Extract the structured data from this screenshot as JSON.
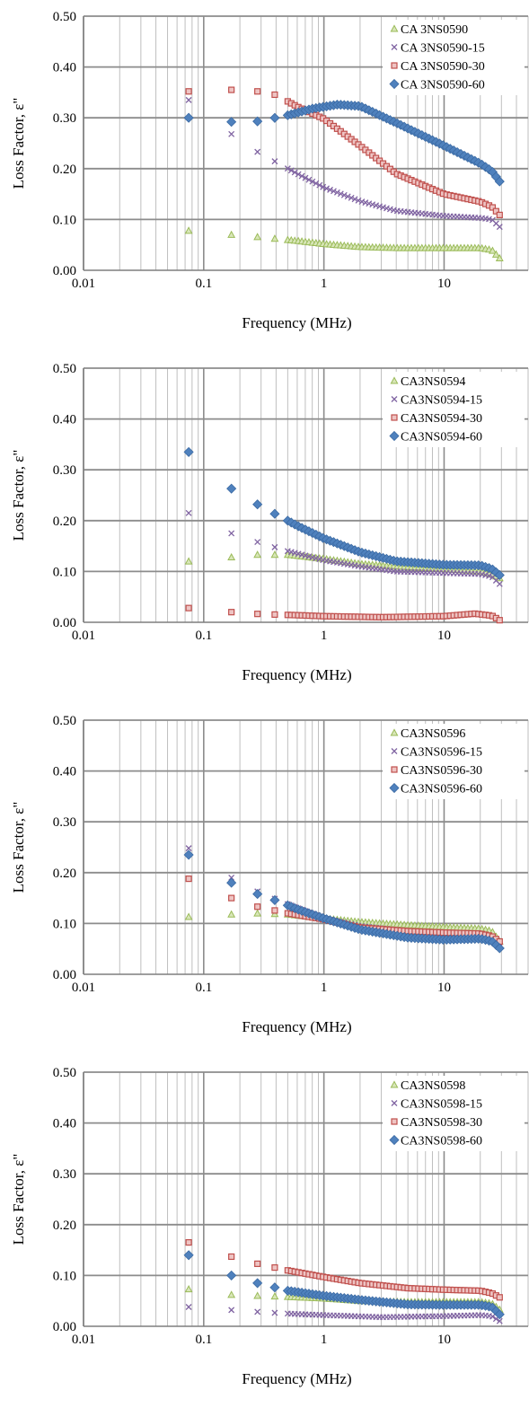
{
  "chart_data": [
    {
      "type": "scatter",
      "xlabel": "Frequency (MHz)",
      "ylabel": "Loss Factor, ε\"",
      "xscale": "log",
      "xlim": [
        0.01,
        50
      ],
      "ylim": [
        0,
        0.5
      ],
      "x_ticks": [
        "0.01",
        "0.1",
        "1",
        "10"
      ],
      "y_ticks": [
        "0.00",
        "0.10",
        "0.20",
        "0.30",
        "0.40",
        "0.50"
      ],
      "grid": true,
      "legend_position": "top-right",
      "series": [
        {
          "name": "CA 3NS0590",
          "marker": "triangle",
          "color": "#9bbb59",
          "knots": [
            [
              0.075,
              0.078
            ],
            [
              0.17,
              0.07
            ],
            [
              0.3,
              0.065
            ],
            [
              0.6,
              0.058
            ],
            [
              1.0,
              0.052
            ],
            [
              2.0,
              0.046
            ],
            [
              4.0,
              0.044
            ],
            [
              10,
              0.044
            ],
            [
              20,
              0.044
            ],
            [
              25,
              0.04
            ],
            [
              30,
              0.02
            ]
          ]
        },
        {
          "name": "CA 3NS0590-15",
          "marker": "x",
          "color": "#8064a2",
          "knots": [
            [
              0.075,
              0.335
            ],
            [
              0.17,
              0.268
            ],
            [
              0.27,
              0.235
            ],
            [
              0.4,
              0.213
            ],
            [
              0.6,
              0.19
            ],
            [
              1.0,
              0.163
            ],
            [
              2.0,
              0.136
            ],
            [
              4.0,
              0.117
            ],
            [
              10,
              0.107
            ],
            [
              20,
              0.103
            ],
            [
              25,
              0.1
            ],
            [
              30,
              0.082
            ]
          ]
        },
        {
          "name": "CA 3NS0590-30",
          "marker": "square",
          "color": "#c0504d",
          "knots": [
            [
              0.075,
              0.352
            ],
            [
              0.17,
              0.355
            ],
            [
              0.28,
              0.352
            ],
            [
              0.4,
              0.345
            ],
            [
              0.6,
              0.322
            ],
            [
              1.0,
              0.298
            ],
            [
              2.0,
              0.245
            ],
            [
              4.0,
              0.19
            ],
            [
              10,
              0.15
            ],
            [
              20,
              0.135
            ],
            [
              25,
              0.125
            ],
            [
              30,
              0.105
            ]
          ]
        },
        {
          "name": "CA 3NS0590-60",
          "marker": "diamond",
          "color": "#4f81bd",
          "knots": [
            [
              0.075,
              0.3
            ],
            [
              0.17,
              0.292
            ],
            [
              0.28,
              0.293
            ],
            [
              0.5,
              0.305
            ],
            [
              0.8,
              0.318
            ],
            [
              1.3,
              0.326
            ],
            [
              2.0,
              0.323
            ],
            [
              4.0,
              0.29
            ],
            [
              10,
              0.245
            ],
            [
              20,
              0.21
            ],
            [
              25,
              0.195
            ],
            [
              30,
              0.17
            ]
          ]
        }
      ]
    },
    {
      "type": "scatter",
      "xlabel": "Frequency (MHz)",
      "ylabel": "Loss Factor, ε\"",
      "xscale": "log",
      "xlim": [
        0.01,
        50
      ],
      "ylim": [
        0,
        0.5
      ],
      "x_ticks": [
        "0.01",
        "0.1",
        "1",
        "10"
      ],
      "y_ticks": [
        "0.00",
        "0.10",
        "0.20",
        "0.30",
        "0.40",
        "0.50"
      ],
      "grid": true,
      "legend_position": "top-right",
      "series": [
        {
          "name": "CA3NS0594",
          "marker": "triangle",
          "color": "#9bbb59",
          "knots": [
            [
              0.075,
              0.12
            ],
            [
              0.17,
              0.128
            ],
            [
              0.28,
              0.133
            ],
            [
              0.5,
              0.133
            ],
            [
              1.0,
              0.125
            ],
            [
              2.0,
              0.115
            ],
            [
              4.0,
              0.11
            ],
            [
              10,
              0.105
            ],
            [
              20,
              0.1
            ],
            [
              25,
              0.095
            ],
            [
              30,
              0.085
            ]
          ]
        },
        {
          "name": "CA3NS0594-15",
          "marker": "x",
          "color": "#8064a2",
          "knots": [
            [
              0.075,
              0.215
            ],
            [
              0.17,
              0.175
            ],
            [
              0.28,
              0.158
            ],
            [
              0.5,
              0.14
            ],
            [
              1.0,
              0.122
            ],
            [
              2.0,
              0.11
            ],
            [
              4.0,
              0.1
            ],
            [
              10,
              0.097
            ],
            [
              20,
              0.095
            ],
            [
              25,
              0.09
            ],
            [
              30,
              0.072
            ]
          ]
        },
        {
          "name": "CA3NS0594-30",
          "marker": "square",
          "color": "#c0504d",
          "knots": [
            [
              0.075,
              0.028
            ],
            [
              0.17,
              0.02
            ],
            [
              0.3,
              0.016
            ],
            [
              0.6,
              0.014
            ],
            [
              1.0,
              0.012
            ],
            [
              3.0,
              0.01
            ],
            [
              10,
              0.012
            ],
            [
              18,
              0.017
            ],
            [
              25,
              0.013
            ],
            [
              30,
              0.002
            ]
          ]
        },
        {
          "name": "CA3NS0594-60",
          "marker": "diamond",
          "color": "#4f81bd",
          "knots": [
            [
              0.075,
              0.335
            ],
            [
              0.17,
              0.263
            ],
            [
              0.28,
              0.232
            ],
            [
              0.4,
              0.212
            ],
            [
              0.6,
              0.19
            ],
            [
              1.0,
              0.165
            ],
            [
              2.0,
              0.138
            ],
            [
              4.0,
              0.12
            ],
            [
              10,
              0.113
            ],
            [
              20,
              0.112
            ],
            [
              25,
              0.105
            ],
            [
              30,
              0.09
            ]
          ]
        }
      ]
    },
    {
      "type": "scatter",
      "xlabel": "Frequency (MHz)",
      "ylabel": "Loss Factor, ε\"",
      "xscale": "log",
      "xlim": [
        0.01,
        50
      ],
      "ylim": [
        0,
        0.5
      ],
      "x_ticks": [
        "0.01",
        "0.1",
        "1",
        "10"
      ],
      "y_ticks": [
        "0.00",
        "0.10",
        "0.20",
        "0.30",
        "0.40",
        "0.50"
      ],
      "grid": true,
      "legend_position": "top-right",
      "series": [
        {
          "name": "CA3NS0596",
          "marker": "triangle",
          "color": "#9bbb59",
          "knots": [
            [
              0.075,
              0.113
            ],
            [
              0.17,
              0.118
            ],
            [
              0.28,
              0.12
            ],
            [
              0.5,
              0.118
            ],
            [
              1.0,
              0.11
            ],
            [
              2.0,
              0.103
            ],
            [
              5.0,
              0.097
            ],
            [
              10,
              0.093
            ],
            [
              20,
              0.09
            ],
            [
              25,
              0.085
            ],
            [
              30,
              0.06
            ]
          ]
        },
        {
          "name": "CA3NS0596-15",
          "marker": "x",
          "color": "#8064a2",
          "knots": [
            [
              0.075,
              0.248
            ],
            [
              0.17,
              0.19
            ],
            [
              0.28,
              0.163
            ],
            [
              0.5,
              0.138
            ],
            [
              1.0,
              0.11
            ],
            [
              2.0,
              0.095
            ],
            [
              5.0,
              0.085
            ],
            [
              10,
              0.08
            ],
            [
              20,
              0.078
            ],
            [
              25,
              0.07
            ],
            [
              30,
              0.05
            ]
          ]
        },
        {
          "name": "CA3NS0596-30",
          "marker": "square",
          "color": "#c0504d",
          "knots": [
            [
              0.075,
              0.188
            ],
            [
              0.17,
              0.15
            ],
            [
              0.28,
              0.133
            ],
            [
              0.5,
              0.12
            ],
            [
              1.0,
              0.108
            ],
            [
              2.0,
              0.092
            ],
            [
              5.0,
              0.085
            ],
            [
              10,
              0.082
            ],
            [
              20,
              0.08
            ],
            [
              25,
              0.075
            ],
            [
              30,
              0.062
            ]
          ]
        },
        {
          "name": "CA3NS0596-60",
          "marker": "diamond",
          "color": "#4f81bd",
          "knots": [
            [
              0.075,
              0.235
            ],
            [
              0.17,
              0.18
            ],
            [
              0.28,
              0.158
            ],
            [
              0.4,
              0.145
            ],
            [
              0.6,
              0.128
            ],
            [
              1.0,
              0.11
            ],
            [
              2.0,
              0.088
            ],
            [
              5.0,
              0.072
            ],
            [
              10,
              0.068
            ],
            [
              20,
              0.07
            ],
            [
              25,
              0.065
            ],
            [
              30,
              0.048
            ]
          ]
        }
      ]
    },
    {
      "type": "scatter",
      "xlabel": "Frequency (MHz)",
      "ylabel": "Loss Factor, ε\"",
      "xscale": "log",
      "xlim": [
        0.01,
        50
      ],
      "ylim": [
        0,
        0.5
      ],
      "x_ticks": [
        "0.01",
        "0.1",
        "1",
        "10"
      ],
      "y_ticks": [
        "0.00",
        "0.10",
        "0.20",
        "0.30",
        "0.40",
        "0.50"
      ],
      "grid": true,
      "legend_position": "top-right",
      "series": [
        {
          "name": "CA3NS0598",
          "marker": "triangle",
          "color": "#9bbb59",
          "knots": [
            [
              0.075,
              0.073
            ],
            [
              0.17,
              0.062
            ],
            [
              0.28,
              0.06
            ],
            [
              0.5,
              0.058
            ],
            [
              1.0,
              0.055
            ],
            [
              2.0,
              0.05
            ],
            [
              5.0,
              0.048
            ],
            [
              10,
              0.048
            ],
            [
              20,
              0.048
            ],
            [
              25,
              0.045
            ],
            [
              30,
              0.03
            ]
          ]
        },
        {
          "name": "CA3NS0598-15",
          "marker": "x",
          "color": "#8064a2",
          "knots": [
            [
              0.075,
              0.038
            ],
            [
              0.17,
              0.032
            ],
            [
              0.3,
              0.028
            ],
            [
              0.6,
              0.024
            ],
            [
              1.0,
              0.022
            ],
            [
              3.0,
              0.018
            ],
            [
              10,
              0.02
            ],
            [
              20,
              0.022
            ],
            [
              25,
              0.02
            ],
            [
              30,
              0.008
            ]
          ]
        },
        {
          "name": "CA3NS0598-30",
          "marker": "square",
          "color": "#c0504d",
          "knots": [
            [
              0.075,
              0.165
            ],
            [
              0.17,
              0.137
            ],
            [
              0.28,
              0.123
            ],
            [
              0.5,
              0.11
            ],
            [
              1.0,
              0.097
            ],
            [
              2.0,
              0.085
            ],
            [
              5.0,
              0.075
            ],
            [
              10,
              0.072
            ],
            [
              20,
              0.07
            ],
            [
              25,
              0.065
            ],
            [
              30,
              0.055
            ]
          ]
        },
        {
          "name": "CA3NS0598-60",
          "marker": "diamond",
          "color": "#4f81bd",
          "knots": [
            [
              0.075,
              0.14
            ],
            [
              0.17,
              0.1
            ],
            [
              0.28,
              0.085
            ],
            [
              0.5,
              0.07
            ],
            [
              1.0,
              0.06
            ],
            [
              2.0,
              0.052
            ],
            [
              5.0,
              0.043
            ],
            [
              10,
              0.042
            ],
            [
              20,
              0.042
            ],
            [
              25,
              0.038
            ],
            [
              30,
              0.02
            ]
          ]
        }
      ]
    }
  ]
}
